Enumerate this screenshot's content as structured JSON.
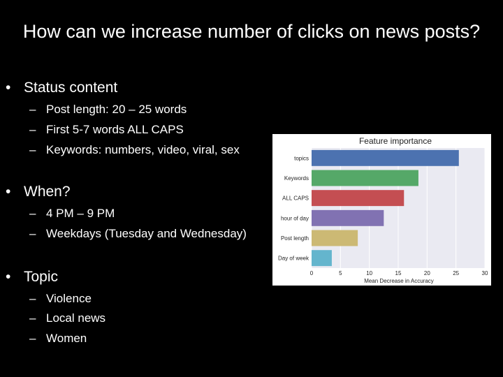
{
  "slide": {
    "title": "How can we increase number of clicks on news posts?"
  },
  "bullet_symbol": "•",
  "dash_symbol": "–",
  "sections": [
    {
      "heading": "Status content",
      "items": [
        "Post length: 20 – 25 words",
        "First 5-7 words ALL CAPS",
        "Keywords: numbers, video, viral, sex"
      ]
    },
    {
      "heading": "When?",
      "items": [
        "4 PM – 9 PM",
        "Weekdays (Tuesday and Wednesday)"
      ]
    },
    {
      "heading": "Topic",
      "items": [
        "Violence",
        "Local news",
        "Women"
      ]
    }
  ],
  "chart_data": {
    "type": "bar",
    "orientation": "horizontal",
    "title": "Feature importance",
    "xlabel": "Mean Decrease in Accuracy",
    "ylabel": "",
    "categories": [
      "topics",
      "Keywords",
      "ALL CAPS",
      "hour of day",
      "Post length",
      "Day of week"
    ],
    "values": [
      25.5,
      18.5,
      16,
      12.5,
      8,
      3.5
    ],
    "colors": [
      "#4c72b0",
      "#55a868",
      "#c44e52",
      "#8172b2",
      "#ccb974",
      "#64b5cd"
    ],
    "xlim": [
      0,
      30
    ],
    "xticks": [
      0,
      5,
      10,
      15,
      20,
      25,
      30
    ],
    "grid": true,
    "plot_background": "#eaeaf2"
  }
}
